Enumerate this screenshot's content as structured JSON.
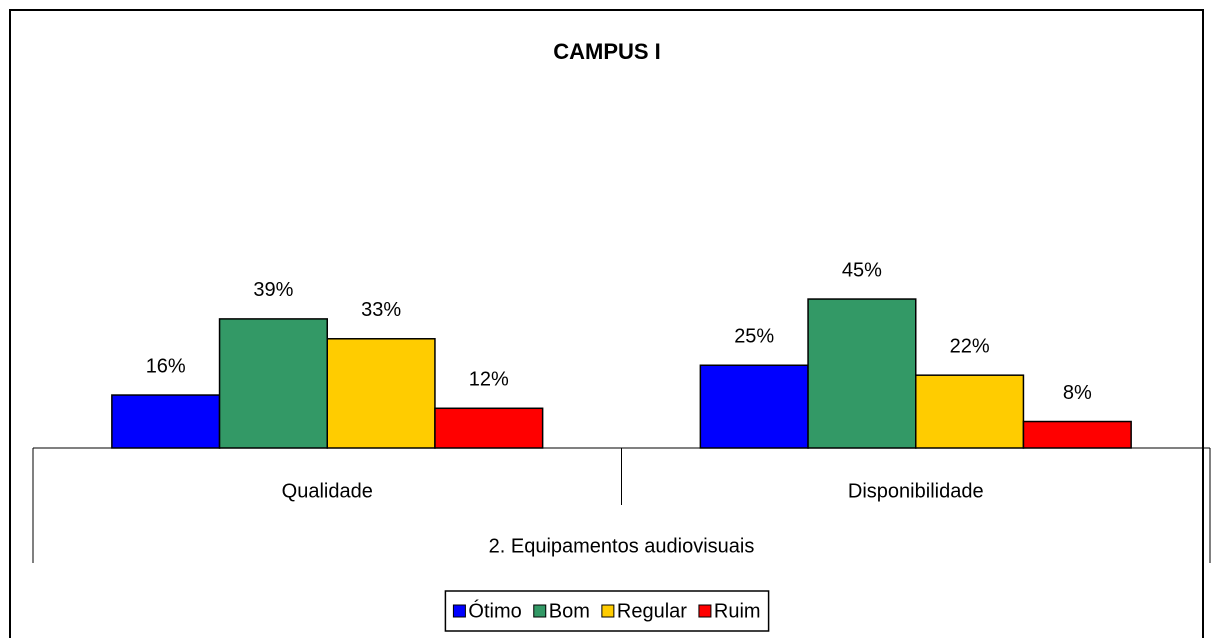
{
  "chart_data": {
    "type": "bar",
    "title": "CAMPUS I",
    "categories": [
      "Qualidade",
      "Disponibilidade"
    ],
    "xlabel": "2. Equipamentos audiovisuais",
    "series": [
      {
        "name": "Ótimo",
        "color": "#0000ff",
        "values": [
          16,
          25
        ],
        "value_labels": [
          "16%",
          "25%"
        ]
      },
      {
        "name": "Bom",
        "color": "#339966",
        "values": [
          39,
          45
        ],
        "value_labels": [
          "39%",
          "45%"
        ]
      },
      {
        "name": "Regular",
        "color": "#ffcc00",
        "values": [
          33,
          22
        ],
        "value_labels": [
          "33%",
          "22%"
        ]
      },
      {
        "name": "Ruim",
        "color": "#ff0000",
        "values": [
          12,
          8
        ],
        "value_labels": [
          "12%",
          "8%"
        ]
      }
    ],
    "legend": "bottom"
  }
}
